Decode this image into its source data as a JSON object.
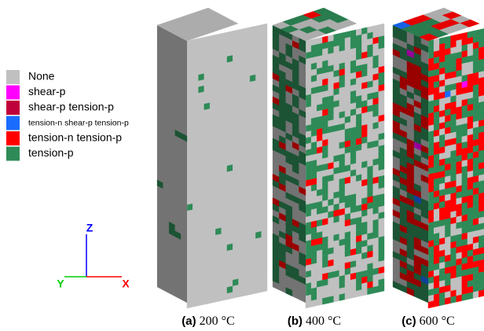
{
  "legend": {
    "items": [
      {
        "label": "None",
        "color": "#c0c0c0"
      },
      {
        "label": "shear-p",
        "color": "#ff00ff"
      },
      {
        "label": "shear-p tension-p",
        "color": "#c0003a"
      },
      {
        "label": "tension-n shear-p tension-p",
        "color": "#1a6cff"
      },
      {
        "label": "tension-n tension-p",
        "color": "#ff0000"
      },
      {
        "label": "tension-p",
        "color": "#2e8b57"
      }
    ]
  },
  "axes": {
    "z": "Z",
    "y": "Y",
    "x": "X"
  },
  "panels": [
    {
      "label": "(a)",
      "caption": "200 °C"
    },
    {
      "label": "(b)",
      "caption": "400 °C"
    },
    {
      "label": "(c)",
      "caption": "600 °C"
    }
  ]
}
